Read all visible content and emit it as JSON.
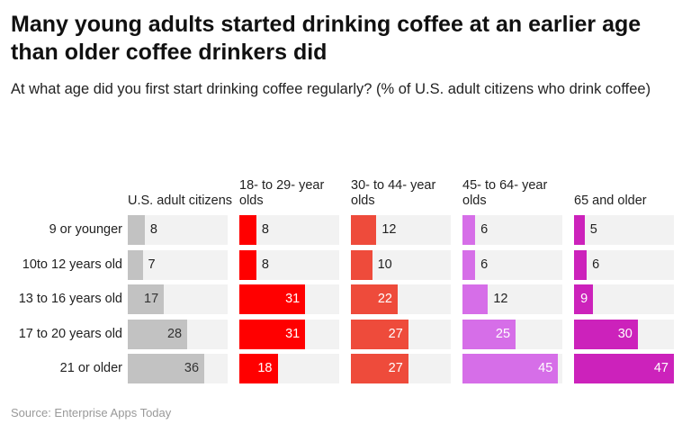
{
  "chart_data": {
    "type": "bar",
    "title": "Many young adults started drinking coffee at an earlier age than older coffee drinkers did",
    "subtitle": "At what age did you first start drinking coffee regularly? (% of U.S. adult citizens who drink coffee)",
    "categories": [
      "9 or younger",
      "10to 12 years old",
      "13 to 16 years old",
      "17 to 20 years old",
      "21 or older"
    ],
    "series": [
      {
        "name": "U.S. adult citizens",
        "values": [
          8,
          7,
          17,
          28,
          36
        ],
        "color": "#c2c2c2"
      },
      {
        "name": "18- to 29- year olds",
        "values": [
          8,
          8,
          31,
          31,
          18
        ],
        "color": "#ff0000"
      },
      {
        "name": "30- to 44- year olds",
        "values": [
          12,
          10,
          22,
          27,
          27
        ],
        "color": "#ee4b3b"
      },
      {
        "name": "45- to 64- year olds",
        "values": [
          6,
          6,
          12,
          25,
          45
        ],
        "color": "#d66ee8"
      },
      {
        "name": "65 and older",
        "values": [
          5,
          6,
          9,
          30,
          47
        ],
        "color": "#cc22bb"
      }
    ],
    "xlim": [
      0,
      47
    ],
    "source": "Source: Enterprise Apps Today"
  }
}
